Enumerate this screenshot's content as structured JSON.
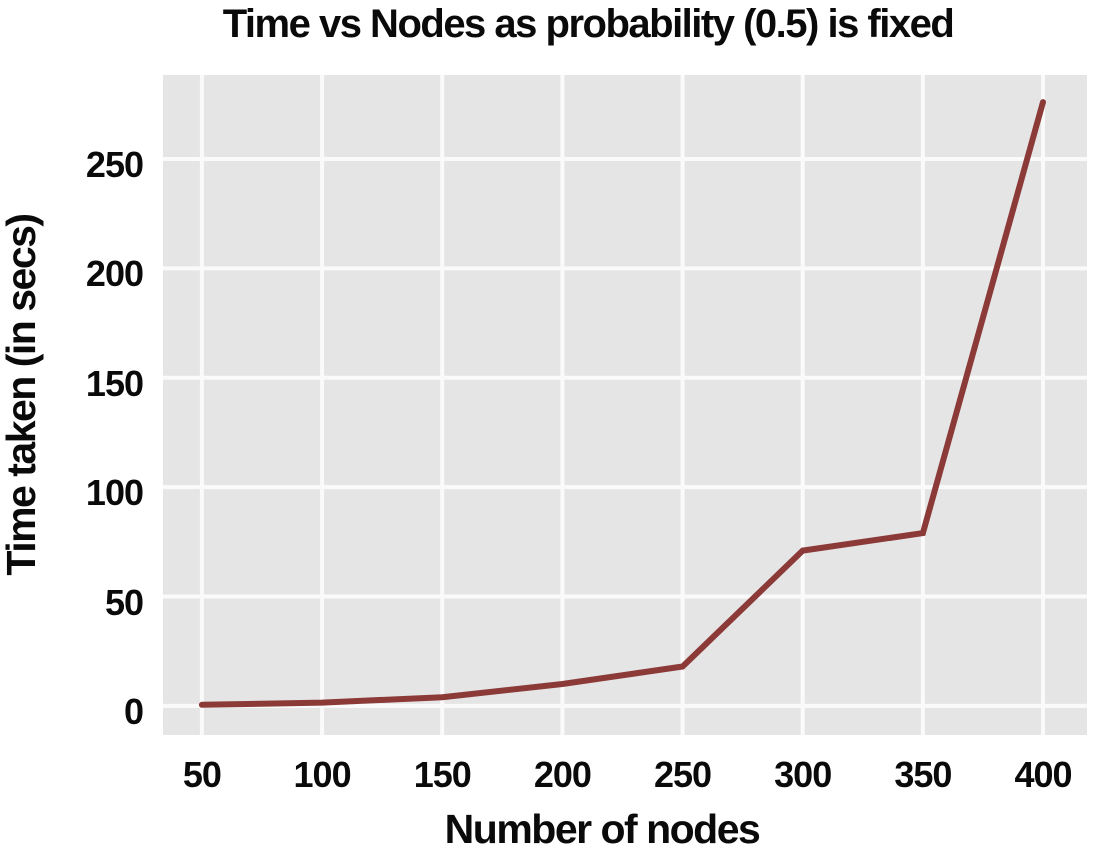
{
  "chart_data": {
    "type": "line",
    "title": "Time vs Nodes as probability (0.5) is fixed",
    "xlabel": "Number of nodes",
    "ylabel": "Time taken (in secs)",
    "x": [
      50,
      100,
      150,
      200,
      250,
      300,
      350,
      400
    ],
    "y": [
      0.5,
      1.5,
      4,
      10,
      18,
      71,
      79,
      276
    ],
    "xticks": [
      50,
      100,
      150,
      200,
      250,
      300,
      350,
      400
    ],
    "yticks": [
      0,
      50,
      100,
      150,
      200,
      250
    ],
    "xlim": [
      33.8,
      418.3
    ],
    "ylim": [
      -13.3,
      288.4
    ],
    "grid": true,
    "legend": false,
    "colors": {
      "line": "#8b3a38",
      "plot_background": "#e5e5e5",
      "gridline": "#fafafa",
      "text": "#0a0a0a",
      "figure_background": "#ffffff"
    }
  }
}
